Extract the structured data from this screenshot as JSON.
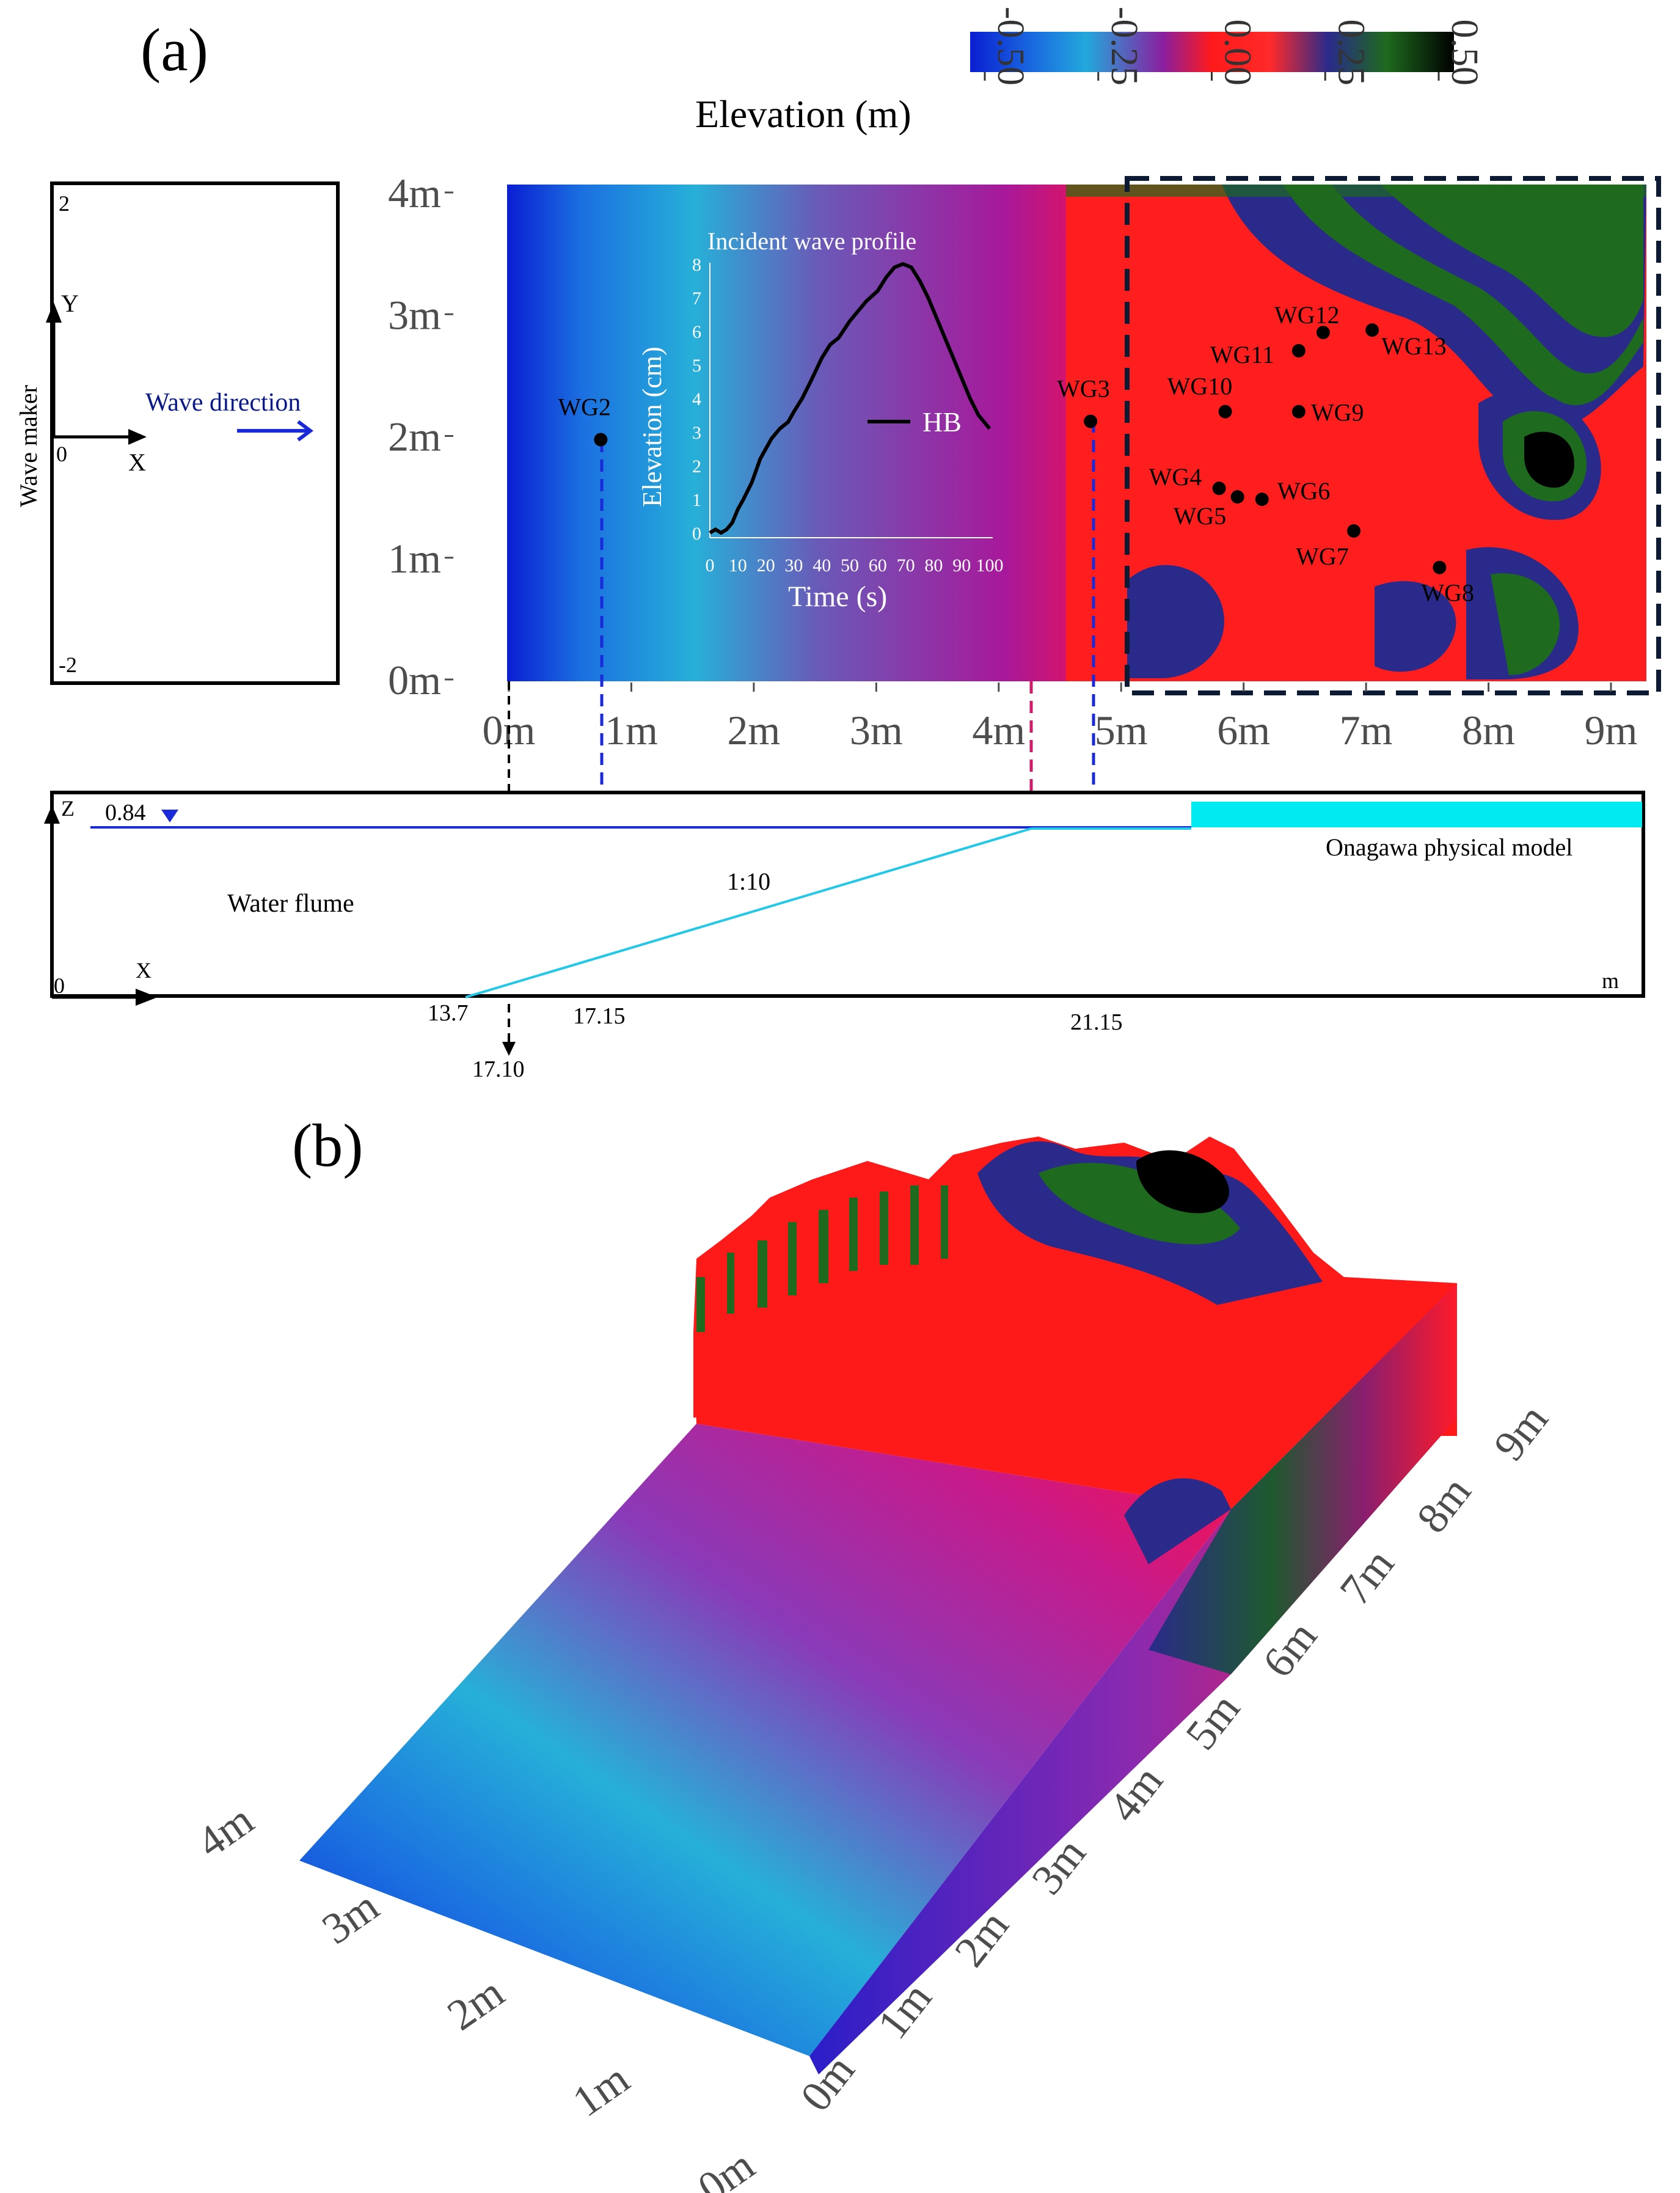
{
  "panel_a": {
    "label": "(a)",
    "colorbar": {
      "title": "Elevation (m)",
      "ticks": [
        "-0.50",
        "-0.25",
        "0.00",
        "0.25",
        "0.50"
      ],
      "colors": [
        "#0a1ed2",
        "#1fa0dc",
        "#8a1e9e",
        "#ff1a1a",
        "#ff2a2a",
        "#2a2a8a",
        "#1e6a1e",
        "#000000"
      ]
    },
    "plan_view": {
      "y_ticks": [
        "0m",
        "1m",
        "2m",
        "3m",
        "4m"
      ],
      "x_ticks": [
        "0m",
        "1m",
        "2m",
        "3m",
        "4m",
        "5m",
        "6m",
        "7m",
        "8m",
        "9m"
      ],
      "gauges": [
        {
          "name": "WG2",
          "x": 0.75,
          "y": 1.97
        },
        {
          "name": "WG3",
          "x": 4.75,
          "y": 2.12
        },
        {
          "name": "WG4",
          "x": 5.8,
          "y": 1.57
        },
        {
          "name": "WG5",
          "x": 5.95,
          "y": 1.5
        },
        {
          "name": "WG6",
          "x": 6.15,
          "y": 1.48
        },
        {
          "name": "WG7",
          "x": 6.9,
          "y": 1.22
        },
        {
          "name": "WG8",
          "x": 7.6,
          "y": 0.92
        },
        {
          "name": "WG9",
          "x": 6.45,
          "y": 2.2
        },
        {
          "name": "WG10",
          "x": 5.85,
          "y": 2.2
        },
        {
          "name": "WG11",
          "x": 6.45,
          "y": 2.7
        },
        {
          "name": "WG12",
          "x": 6.65,
          "y": 2.85
        },
        {
          "name": "WG13",
          "x": 7.05,
          "y": 2.87
        }
      ]
    },
    "inset": {
      "title": "Incident wave profile",
      "xlabel": "Time (s)",
      "ylabel": "Elevation (cm)",
      "x_ticks": [
        "0",
        "10",
        "20",
        "30",
        "40",
        "50",
        "60",
        "70",
        "80",
        "90",
        "100"
      ],
      "y_ticks": [
        "0",
        "1",
        "2",
        "3",
        "4",
        "5",
        "6",
        "7",
        "8"
      ],
      "legend": "HB"
    },
    "schematic": {
      "y_top": "2",
      "y_bottom": "-2",
      "origin": "0",
      "x_label": "X",
      "y_label": "Y",
      "wave_maker": "Wave maker",
      "wave_direction": "Wave direction"
    },
    "flume": {
      "z_label": "Z",
      "x_label": "X",
      "origin": "0",
      "unit": "m",
      "water_level": "0.84",
      "water_flume": "Water flume",
      "slope": "1:10",
      "model": "Onagawa physical model",
      "marks": [
        "13.7",
        "17.15",
        "21.15",
        "17.10"
      ]
    }
  },
  "panel_b": {
    "label": "(b)",
    "x_ticks": [
      "0m",
      "1m",
      "2m",
      "3m",
      "4m",
      "5m",
      "6m",
      "7m",
      "8m",
      "9m"
    ],
    "y_ticks": [
      "0m",
      "1m",
      "2m",
      "3m",
      "4m"
    ]
  },
  "chart_data": {
    "type": "line",
    "title": "Incident wave profile",
    "xlabel": "Time (s)",
    "ylabel": "Elevation (cm)",
    "xlim": [
      0,
      100
    ],
    "ylim": [
      0,
      8
    ],
    "series": [
      {
        "name": "HB",
        "x": [
          0,
          2,
          4,
          6,
          8,
          10,
          12,
          15,
          18,
          20,
          22,
          25,
          28,
          30,
          33,
          36,
          40,
          43,
          46,
          50,
          53,
          56,
          60,
          63,
          66,
          69,
          72,
          75,
          78,
          81,
          84,
          87,
          90,
          93,
          96,
          100
        ],
        "y": [
          0.0,
          0.1,
          0.0,
          0.1,
          0.3,
          0.7,
          1.0,
          1.5,
          2.2,
          2.5,
          2.8,
          3.1,
          3.3,
          3.6,
          4.0,
          4.5,
          5.2,
          5.6,
          5.8,
          6.3,
          6.6,
          6.9,
          7.2,
          7.6,
          7.9,
          8.0,
          7.9,
          7.5,
          7.0,
          6.4,
          5.8,
          5.2,
          4.6,
          4.0,
          3.5,
          3.1
        ]
      }
    ]
  }
}
